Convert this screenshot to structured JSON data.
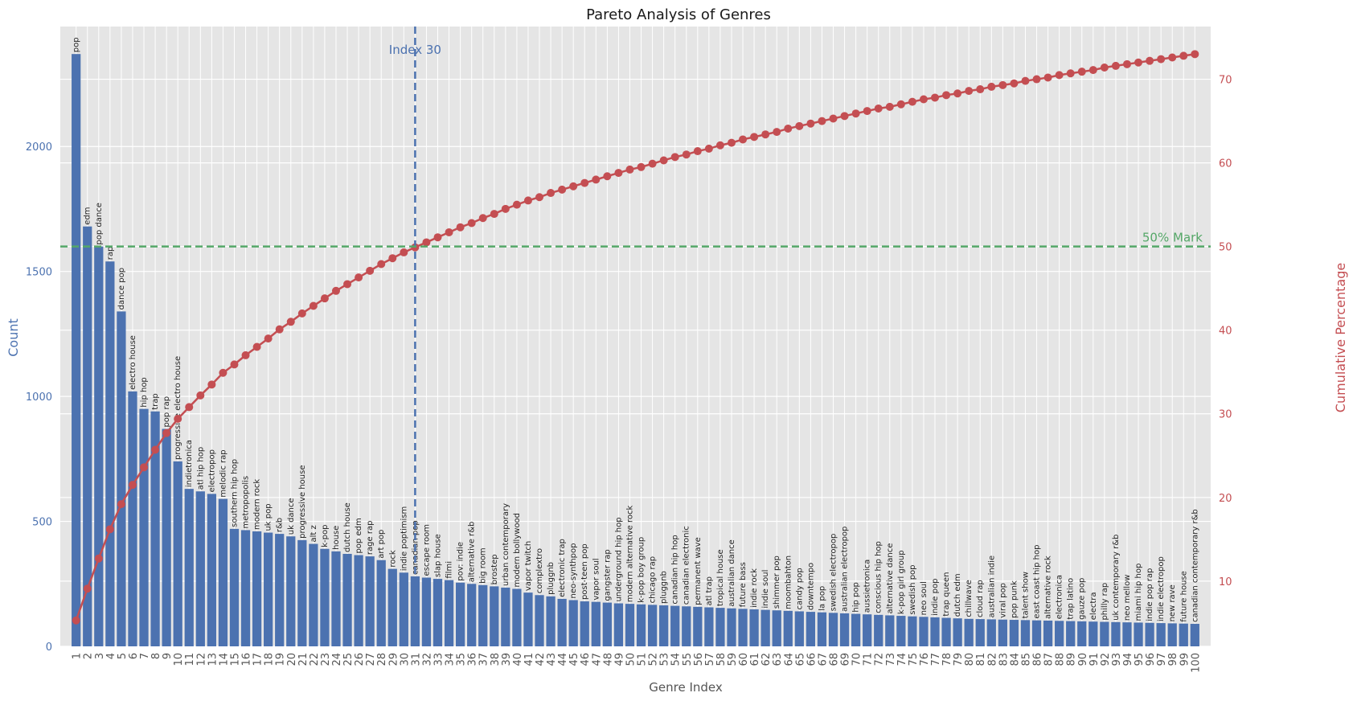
{
  "chart_data": {
    "type": "bar+line",
    "title": "Pareto Analysis of Genres",
    "xlabel": "Genre Index",
    "ylabel_left": "Count",
    "ylabel_right": "Cumulative Percentage",
    "ylim_left": [
      0,
      2480
    ],
    "ylim_right": [
      2.2,
      76.3
    ],
    "yticks_left": [
      0,
      500,
      1000,
      1500,
      2000
    ],
    "yticks_right": [
      10,
      20,
      30,
      40,
      50,
      60,
      70
    ],
    "vline": {
      "x": 31,
      "label": "Index 30"
    },
    "hline": {
      "y": 50,
      "label": "50% Mark"
    },
    "colors": {
      "bar": "#4c72b0",
      "line": "#c44e52",
      "vline": "#4c72b0",
      "hline": "#55a868",
      "plot_bg": "#e5e5e5",
      "grid": "#ffffff",
      "axis_text": "#555555"
    },
    "x": [
      1,
      2,
      3,
      4,
      5,
      6,
      7,
      8,
      9,
      10,
      11,
      12,
      13,
      14,
      15,
      16,
      17,
      18,
      19,
      20,
      21,
      22,
      23,
      24,
      25,
      26,
      27,
      28,
      29,
      30,
      31,
      32,
      33,
      34,
      35,
      36,
      37,
      38,
      39,
      40,
      41,
      42,
      43,
      44,
      45,
      46,
      47,
      48,
      49,
      50,
      51,
      52,
      53,
      54,
      55,
      56,
      57,
      58,
      59,
      60,
      61,
      62,
      63,
      64,
      65,
      66,
      67,
      68,
      69,
      70,
      71,
      72,
      73,
      74,
      75,
      76,
      77,
      78,
      79,
      80,
      81,
      82,
      83,
      84,
      85,
      86,
      87,
      88,
      89,
      90,
      91,
      92,
      93,
      94,
      95,
      96,
      97,
      98,
      99,
      100
    ],
    "genres": [
      "pop",
      "edm",
      "pop dance",
      "rap",
      "dance pop",
      "electro house",
      "hip hop",
      "trap",
      "pop rap",
      "progressive electro house",
      "indietronica",
      "atl hip hop",
      "electropop",
      "melodic rap",
      "southern hip hop",
      "metropopolis",
      "modern rock",
      "uk pop",
      "r&b",
      "uk dance",
      "progressive house",
      "alt z",
      "k-pop",
      "house",
      "dutch house",
      "pop edm",
      "rage rap",
      "art pop",
      "rock",
      "indie poptimism",
      "canadian pop",
      "escape room",
      "slap house",
      "filmi",
      "pov: indie",
      "alternative r&b",
      "big room",
      "brostep",
      "urban contemporary",
      "modern bollywood",
      "vapor twitch",
      "complextro",
      "pluggnb",
      "electronic trap",
      "neo-synthpop",
      "post-teen pop",
      "vapor soul",
      "gangster rap",
      "underground hip hop",
      "modern alternative rock",
      "k-pop boy group",
      "chicago rap",
      "pluggnb",
      "canadian hip hop",
      "canadian electronic",
      "permanent wave",
      "atl trap",
      "tropical house",
      "australian dance",
      "future bass",
      "indie rock",
      "indie soul",
      "shimmer pop",
      "moombahton",
      "candy pop",
      "downtempo",
      "la pop",
      "swedish electropop",
      "australian electropop",
      "hip pop",
      "aussietronica",
      "conscious hip hop",
      "alternative dance",
      "k-pop girl group",
      "swedish pop",
      "neo soul",
      "indie pop",
      "trap queen",
      "dutch edm",
      "chillwave",
      "cloud rap",
      "australian indie",
      "viral pop",
      "pop punk",
      "talent show",
      "east coast hip hop",
      "alternative rock",
      "electronica",
      "trap latino",
      "gauze pop",
      "electra",
      "philly rap",
      "uk contemporary r&b",
      "neo mellow",
      "miami hip hop",
      "indie pop rap",
      "indie electropop",
      "new rave",
      "future house",
      "canadian contemporary r&b"
    ],
    "values": [
      2370,
      1680,
      1600,
      1540,
      1340,
      1020,
      950,
      940,
      870,
      740,
      630,
      620,
      610,
      590,
      470,
      465,
      460,
      455,
      450,
      440,
      425,
      410,
      390,
      380,
      370,
      365,
      360,
      345,
      310,
      295,
      280,
      275,
      270,
      265,
      255,
      250,
      245,
      240,
      235,
      230,
      215,
      205,
      200,
      190,
      185,
      180,
      178,
      175,
      172,
      170,
      168,
      166,
      164,
      162,
      160,
      158,
      156,
      154,
      152,
      150,
      148,
      146,
      144,
      142,
      140,
      138,
      136,
      134,
      132,
      130,
      128,
      126,
      124,
      122,
      120,
      118,
      116,
      114,
      112,
      110,
      109,
      108,
      107,
      106,
      105,
      104,
      103,
      102,
      101,
      100,
      99,
      98,
      97,
      96,
      95,
      94,
      93,
      92,
      91,
      90
    ],
    "cumulative_percent": [
      5.3,
      9.1,
      12.7,
      16.2,
      19.2,
      21.5,
      23.6,
      25.7,
      27.7,
      29.4,
      30.8,
      32.2,
      33.5,
      34.9,
      35.9,
      37.0,
      38.0,
      39.0,
      40.1,
      41.0,
      42.0,
      42.9,
      43.8,
      44.7,
      45.5,
      46.3,
      47.1,
      47.9,
      48.6,
      49.3,
      49.9,
      50.5,
      51.1,
      51.7,
      52.3,
      52.8,
      53.4,
      53.9,
      54.5,
      55.0,
      55.5,
      55.9,
      56.4,
      56.8,
      57.2,
      57.6,
      58.0,
      58.4,
      58.8,
      59.2,
      59.5,
      59.9,
      60.3,
      60.7,
      61.0,
      61.4,
      61.7,
      62.1,
      62.4,
      62.8,
      63.1,
      63.4,
      63.7,
      64.1,
      64.4,
      64.7,
      65.0,
      65.3,
      65.6,
      65.9,
      66.2,
      66.5,
      66.7,
      67.0,
      67.3,
      67.6,
      67.8,
      68.1,
      68.3,
      68.6,
      68.8,
      69.1,
      69.3,
      69.5,
      69.8,
      70.0,
      70.2,
      70.5,
      70.7,
      70.9,
      71.1,
      71.4,
      71.6,
      71.8,
      72.0,
      72.2,
      72.4,
      72.6,
      72.8,
      73.0
    ]
  }
}
